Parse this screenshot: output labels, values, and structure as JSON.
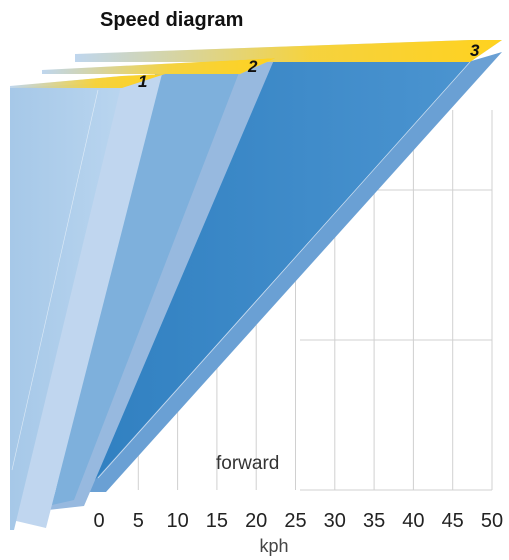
{
  "chart_data": {
    "type": "area",
    "title": "Speed diagram",
    "xlabel": "kph",
    "direction_label": "forward",
    "x_ticks": [
      0,
      5,
      10,
      15,
      20,
      25,
      30,
      35,
      40,
      45,
      50
    ],
    "xlim": [
      0,
      50
    ],
    "grid": "vertical lines at every 5 kph",
    "series": [
      {
        "name": "1",
        "max_speed": 8
      },
      {
        "name": "2",
        "max_speed": 21
      },
      {
        "name": "3",
        "max_speed": 50
      }
    ],
    "colors": {
      "gear_1": "#a9cbe9",
      "gear_2": "#7eb0dc",
      "gear_3": "#3a8ac8",
      "label_tab": "#ffd21f",
      "grid": "#d0d0d0"
    }
  }
}
